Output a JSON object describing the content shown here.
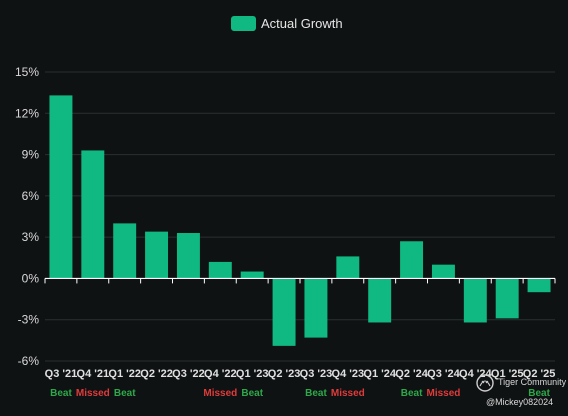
{
  "chart_data": {
    "type": "bar",
    "categories": [
      "Q3 '21",
      "Q4 '21",
      "Q1 '22",
      "Q2 '22",
      "Q3 '22",
      "Q4 '22",
      "Q1 '23",
      "Q2 '23",
      "Q3 '23",
      "Q4 '23",
      "Q1 '24",
      "Q2 '24",
      "Q3 '24",
      "Q4 '24",
      "Q1 '25",
      "Q2 '25"
    ],
    "series": [
      {
        "name": "Actual Growth",
        "values": [
          13.3,
          9.3,
          4.0,
          3.4,
          3.3,
          1.2,
          0.5,
          -4.9,
          -4.3,
          1.6,
          -3.2,
          2.7,
          1.0,
          -3.2,
          -2.9,
          -1.0
        ]
      }
    ],
    "results": [
      "Beat",
      "Missed",
      "Beat",
      "",
      "",
      "Missed",
      "Beat",
      "",
      "Beat",
      "Missed",
      "",
      "Beat",
      "Missed",
      "",
      "",
      "Beat"
    ],
    "ylim": [
      -6,
      15
    ],
    "yticks": [
      -6,
      -3,
      0,
      3,
      6,
      9,
      12,
      15
    ],
    "ytick_suffix": "%",
    "grid": true,
    "legend": "top-center",
    "xlabel": "",
    "ylabel": ""
  },
  "colors": {
    "bar": "#10b981",
    "beat": "#2ea84a",
    "missed": "#e03b3b",
    "grid": "#2a2f31",
    "background": "#0f1213"
  },
  "legend": {
    "label": "Actual Growth"
  },
  "watermark": {
    "brand": "Tiger Community",
    "user": "@Mickey082024",
    "icon": "tiger-logo-icon"
  }
}
